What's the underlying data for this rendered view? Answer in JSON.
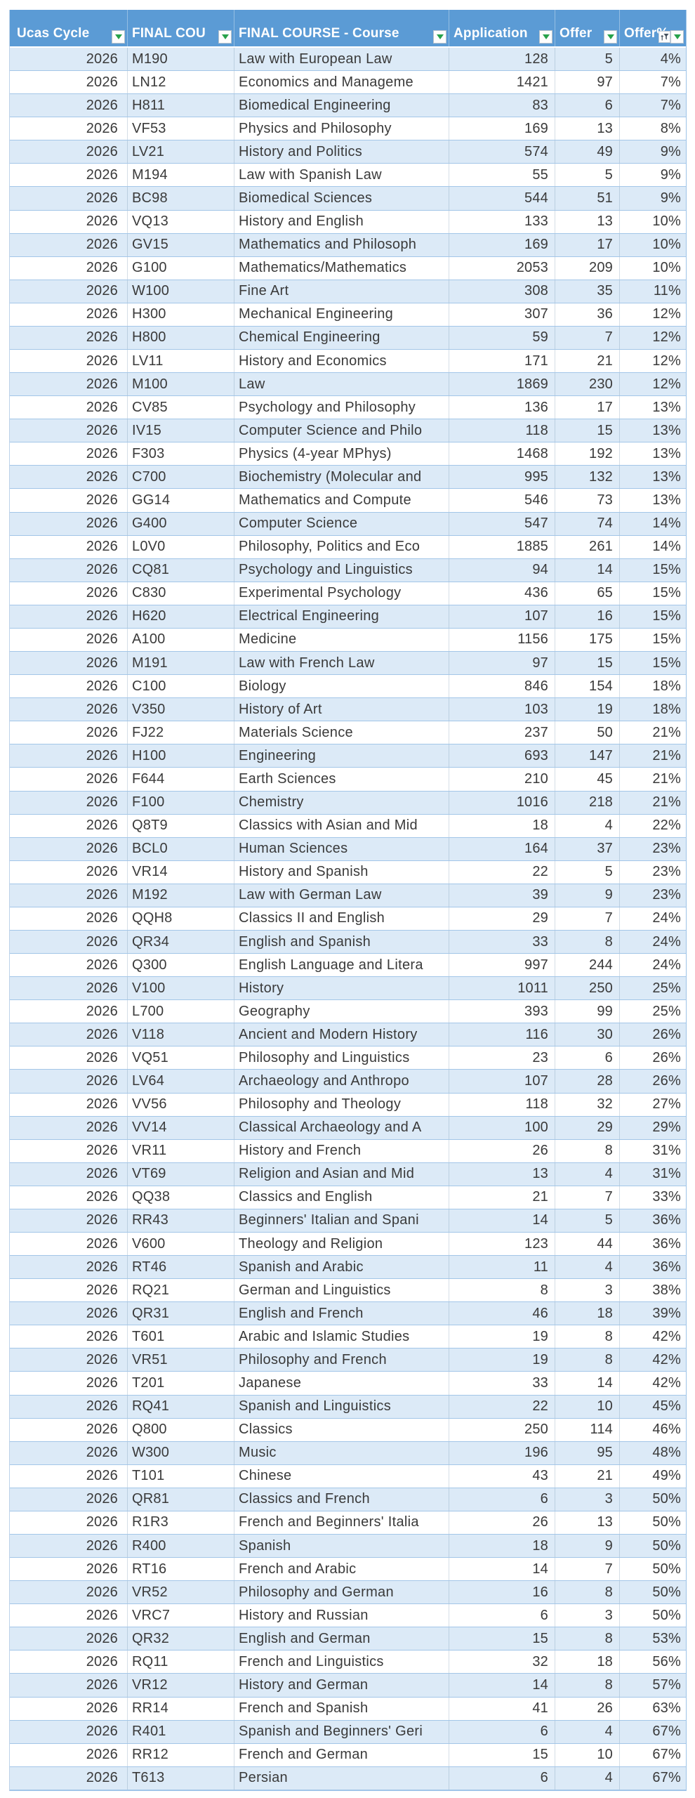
{
  "colors": {
    "header_bg": "#5B9BD5",
    "header_text": "#FFFFFF",
    "band_row_bg": "#DCEAF7",
    "plain_row_bg": "#FFFFFF",
    "row_border": "#A3C6E8",
    "filter_arrow_green": "#27A24B",
    "cell_text": "#3A3A3A"
  },
  "table": {
    "columns": [
      {
        "label": "Ucas Cycle"
      },
      {
        "label": "FINAL COU"
      },
      {
        "label": "FINAL COURSE - Course"
      },
      {
        "label": "Application"
      },
      {
        "label": "Offer"
      },
      {
        "label": "Offer%"
      }
    ],
    "rows": [
      [
        "2026",
        "M190",
        "Law with European Law",
        "128",
        "5",
        "4%"
      ],
      [
        "2026",
        "LN12",
        "Economics and Manageme",
        "1421",
        "97",
        "7%"
      ],
      [
        "2026",
        "H811",
        "Biomedical Engineering",
        "83",
        "6",
        "7%"
      ],
      [
        "2026",
        "VF53",
        "Physics and Philosophy",
        "169",
        "13",
        "8%"
      ],
      [
        "2026",
        "LV21",
        "History and Politics",
        "574",
        "49",
        "9%"
      ],
      [
        "2026",
        "M194",
        "Law with Spanish Law",
        "55",
        "5",
        "9%"
      ],
      [
        "2026",
        "BC98",
        "Biomedical Sciences",
        "544",
        "51",
        "9%"
      ],
      [
        "2026",
        "VQ13",
        "History and English",
        "133",
        "13",
        "10%"
      ],
      [
        "2026",
        "GV15",
        "Mathematics and Philosoph",
        "169",
        "17",
        "10%"
      ],
      [
        "2026",
        "G100",
        "Mathematics/Mathematics",
        "2053",
        "209",
        "10%"
      ],
      [
        "2026",
        "W100",
        "Fine Art",
        "308",
        "35",
        "11%"
      ],
      [
        "2026",
        "H300",
        "Mechanical Engineering",
        "307",
        "36",
        "12%"
      ],
      [
        "2026",
        "H800",
        "Chemical Engineering",
        "59",
        "7",
        "12%"
      ],
      [
        "2026",
        "LV11",
        "History and Economics",
        "171",
        "21",
        "12%"
      ],
      [
        "2026",
        "M100",
        "Law",
        "1869",
        "230",
        "12%"
      ],
      [
        "2026",
        "CV85",
        "Psychology and Philosophy",
        "136",
        "17",
        "13%"
      ],
      [
        "2026",
        "IV15",
        "Computer Science and Philo",
        "118",
        "15",
        "13%"
      ],
      [
        "2026",
        "F303",
        "Physics (4-year MPhys)",
        "1468",
        "192",
        "13%"
      ],
      [
        "2026",
        "C700",
        "Biochemistry (Molecular and",
        "995",
        "132",
        "13%"
      ],
      [
        "2026",
        "GG14",
        "Mathematics and Compute",
        "546",
        "73",
        "13%"
      ],
      [
        "2026",
        "G400",
        "Computer Science",
        "547",
        "74",
        "14%"
      ],
      [
        "2026",
        "L0V0",
        "Philosophy, Politics and Eco",
        "1885",
        "261",
        "14%"
      ],
      [
        "2026",
        "CQ81",
        "Psychology and Linguistics",
        "94",
        "14",
        "15%"
      ],
      [
        "2026",
        "C830",
        "Experimental Psychology",
        "436",
        "65",
        "15%"
      ],
      [
        "2026",
        "H620",
        "Electrical Engineering",
        "107",
        "16",
        "15%"
      ],
      [
        "2026",
        "A100",
        "Medicine",
        "1156",
        "175",
        "15%"
      ],
      [
        "2026",
        "M191",
        "Law with French Law",
        "97",
        "15",
        "15%"
      ],
      [
        "2026",
        "C100",
        "Biology",
        "846",
        "154",
        "18%"
      ],
      [
        "2026",
        "V350",
        "History of Art",
        "103",
        "19",
        "18%"
      ],
      [
        "2026",
        "FJ22",
        "Materials Science",
        "237",
        "50",
        "21%"
      ],
      [
        "2026",
        "H100",
        "Engineering",
        "693",
        "147",
        "21%"
      ],
      [
        "2026",
        "F644",
        "Earth Sciences",
        "210",
        "45",
        "21%"
      ],
      [
        "2026",
        "F100",
        "Chemistry",
        "1016",
        "218",
        "21%"
      ],
      [
        "2026",
        "Q8T9",
        "Classics with Asian and Mid",
        "18",
        "4",
        "22%"
      ],
      [
        "2026",
        "BCL0",
        "Human Sciences",
        "164",
        "37",
        "23%"
      ],
      [
        "2026",
        "VR14",
        "History and Spanish",
        "22",
        "5",
        "23%"
      ],
      [
        "2026",
        "M192",
        "Law with German Law",
        "39",
        "9",
        "23%"
      ],
      [
        "2026",
        "QQH8",
        "Classics II and English",
        "29",
        "7",
        "24%"
      ],
      [
        "2026",
        "QR34",
        "English and Spanish",
        "33",
        "8",
        "24%"
      ],
      [
        "2026",
        "Q300",
        "English Language and Litera",
        "997",
        "244",
        "24%"
      ],
      [
        "2026",
        "V100",
        "History",
        "1011",
        "250",
        "25%"
      ],
      [
        "2026",
        "L700",
        "Geography",
        "393",
        "99",
        "25%"
      ],
      [
        "2026",
        "V118",
        "Ancient and Modern History",
        "116",
        "30",
        "26%"
      ],
      [
        "2026",
        "VQ51",
        "Philosophy and Linguistics",
        "23",
        "6",
        "26%"
      ],
      [
        "2026",
        "LV64",
        "Archaeology and Anthropo",
        "107",
        "28",
        "26%"
      ],
      [
        "2026",
        "VV56",
        "Philosophy and Theology",
        "118",
        "32",
        "27%"
      ],
      [
        "2026",
        "VV14",
        "Classical Archaeology and A",
        "100",
        "29",
        "29%"
      ],
      [
        "2026",
        "VR11",
        "History and French",
        "26",
        "8",
        "31%"
      ],
      [
        "2026",
        "VT69",
        "Religion and Asian and Mid",
        "13",
        "4",
        "31%"
      ],
      [
        "2026",
        "QQ38",
        "Classics and English",
        "21",
        "7",
        "33%"
      ],
      [
        "2026",
        "RR43",
        "Beginners' Italian and Spani",
        "14",
        "5",
        "36%"
      ],
      [
        "2026",
        "V600",
        "Theology and Religion",
        "123",
        "44",
        "36%"
      ],
      [
        "2026",
        "RT46",
        "Spanish and Arabic",
        "11",
        "4",
        "36%"
      ],
      [
        "2026",
        "RQ21",
        "German and Linguistics",
        "8",
        "3",
        "38%"
      ],
      [
        "2026",
        "QR31",
        "English and French",
        "46",
        "18",
        "39%"
      ],
      [
        "2026",
        "T601",
        "Arabic and Islamic Studies",
        "19",
        "8",
        "42%"
      ],
      [
        "2026",
        "VR51",
        "Philosophy and French",
        "19",
        "8",
        "42%"
      ],
      [
        "2026",
        "T201",
        "Japanese",
        "33",
        "14",
        "42%"
      ],
      [
        "2026",
        "RQ41",
        "Spanish and Linguistics",
        "22",
        "10",
        "45%"
      ],
      [
        "2026",
        "Q800",
        "Classics",
        "250",
        "114",
        "46%"
      ],
      [
        "2026",
        "W300",
        "Music",
        "196",
        "95",
        "48%"
      ],
      [
        "2026",
        "T101",
        "Chinese",
        "43",
        "21",
        "49%"
      ],
      [
        "2026",
        "QR81",
        "Classics and French",
        "6",
        "3",
        "50%"
      ],
      [
        "2026",
        "R1R3",
        "French and Beginners' Italia",
        "26",
        "13",
        "50%"
      ],
      [
        "2026",
        "R400",
        "Spanish",
        "18",
        "9",
        "50%"
      ],
      [
        "2026",
        "RT16",
        "French and Arabic",
        "14",
        "7",
        "50%"
      ],
      [
        "2026",
        "VR52",
        "Philosophy and German",
        "16",
        "8",
        "50%"
      ],
      [
        "2026",
        "VRC7",
        "History and Russian",
        "6",
        "3",
        "50%"
      ],
      [
        "2026",
        "QR32",
        "English and German",
        "15",
        "8",
        "53%"
      ],
      [
        "2026",
        "RQ11",
        "French and Linguistics",
        "32",
        "18",
        "56%"
      ],
      [
        "2026",
        "VR12",
        "History and German",
        "14",
        "8",
        "57%"
      ],
      [
        "2026",
        "RR14",
        "French and Spanish",
        "41",
        "26",
        "63%"
      ],
      [
        "2026",
        "R401",
        "Spanish and Beginners' Geri",
        "6",
        "4",
        "67%"
      ],
      [
        "2026",
        "RR12",
        "French and German",
        "15",
        "10",
        "67%"
      ],
      [
        "2026",
        "T613",
        "Persian",
        "6",
        "4",
        "67%"
      ]
    ]
  }
}
